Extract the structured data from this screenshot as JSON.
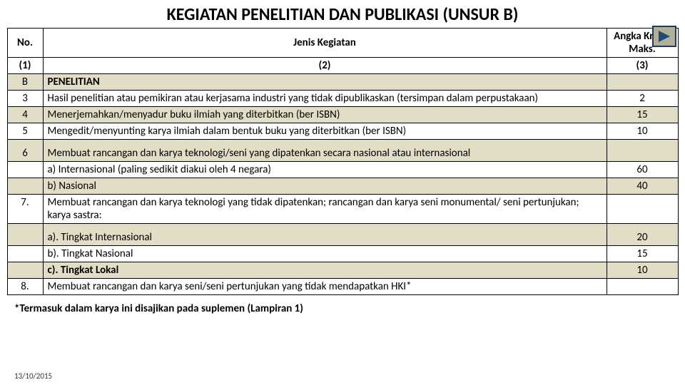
{
  "title": "KEGIATAN PENELITIAN DAN PUBLIKASI (UNSUR B)",
  "header": {
    "no": "No.",
    "kegiatan": "Jenis Kegiatan",
    "angka": "Angka Kredit Maks."
  },
  "subheader": {
    "c1": "(1)",
    "c2": "(2)",
    "c3": "(3)"
  },
  "rows": [
    {
      "no": "B",
      "text": "PENELITIAN",
      "bold": true,
      "val": "",
      "shade": true
    },
    {
      "no": "3",
      "text": "Hasil penelitian atau pemikiran atau kerjasama industri yang tidak dipublikaskan (tersimpan dalam perpustakaan)",
      "val": "2"
    },
    {
      "no": "4",
      "text": "Menerjemahkan/menyadur buku ilmiah yang diterbitkan (ber ISBN)",
      "val": "15",
      "shade": true
    },
    {
      "no": "5",
      "text": "Mengedit/menyunting karya ilmiah dalam bentuk buku yang diterbitkan (ber ISBN)",
      "val": "10"
    },
    {
      "no": "6",
      "text": "Membuat rancangan dan karya teknologi/seni yang dipatenkan secara nasional atau internasional",
      "val": "",
      "shade": true,
      "padtop": true
    },
    {
      "no": "",
      "text": "a)  Internasional (paling sedikit diakui oleh 4 negara)",
      "val": "60"
    },
    {
      "no": "",
      "text": "b)  Nasional",
      "val": "40",
      "shade": true
    },
    {
      "no": "7.",
      "text": "Membuat rancangan dan karya teknologi yang tidak dipatenkan; rancangan dan karya seni monumental/ seni pertunjukan; karya sastra:",
      "val": ""
    },
    {
      "no": "",
      "text": "a). Tingkat Internasional",
      "val": "20",
      "shade": true,
      "padtop": true
    },
    {
      "no": "",
      "text": "b). Tingkat Nasional",
      "val": "15"
    },
    {
      "no": "",
      "text": "c). Tingkat  Lokal",
      "bold": true,
      "val": "10",
      "shade": true
    },
    {
      "no": "8.",
      "text": "Membuat rancangan dan karya seni/seni pertunjukan yang tidak mendapatkan HKI*",
      "val": ""
    }
  ],
  "footnote": "*Termasuk dalam karya ini  disajikan pada suplemen (Lampiran 1)",
  "datestamp": "13/10/2015",
  "colors": {
    "shade": "#e2ddc6",
    "arrow_fill": "#1f4e79",
    "btn_bg": "#b0b09a",
    "btn_border": "#1f3a5f"
  }
}
